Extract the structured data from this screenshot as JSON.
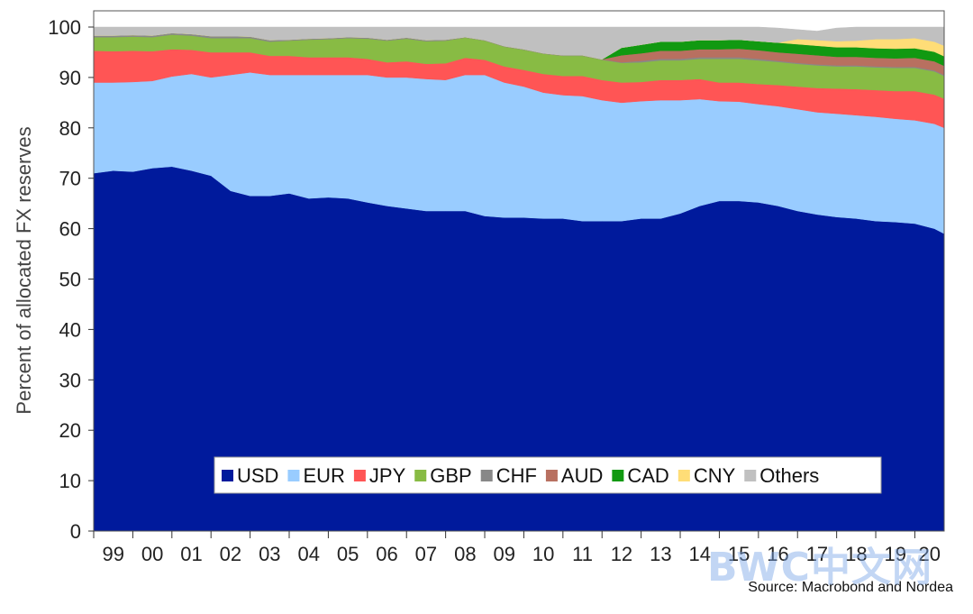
{
  "chart_data": {
    "type": "area",
    "stacked": true,
    "title": "",
    "xlabel": "",
    "ylabel": "Percent of allocated FX reserves",
    "ylim": [
      0,
      100
    ],
    "yticks": [
      0,
      10,
      20,
      30,
      40,
      50,
      60,
      70,
      80,
      90,
      100
    ],
    "x_range": [
      1999.0,
      2020.75
    ],
    "xtick_labels": [
      "99",
      "00",
      "01",
      "02",
      "03",
      "04",
      "05",
      "06",
      "07",
      "08",
      "09",
      "10",
      "11",
      "12",
      "13",
      "14",
      "15",
      "16",
      "17",
      "18",
      "19",
      "20"
    ],
    "x": [
      1999.0,
      1999.5,
      2000.0,
      2000.5,
      2001.0,
      2001.5,
      2002.0,
      2002.5,
      2003.0,
      2003.5,
      2004.0,
      2004.5,
      2005.0,
      2005.5,
      2006.0,
      2006.5,
      2007.0,
      2007.5,
      2008.0,
      2008.5,
      2009.0,
      2009.5,
      2010.0,
      2010.5,
      2011.0,
      2011.5,
      2012.0,
      2012.5,
      2013.0,
      2013.5,
      2014.0,
      2014.5,
      2015.0,
      2015.5,
      2016.0,
      2016.5,
      2017.0,
      2017.5,
      2018.0,
      2018.5,
      2019.0,
      2019.5,
      2020.0,
      2020.5,
      2020.75
    ],
    "legend_position": "bottom-center",
    "series": [
      {
        "name": "USD",
        "color": "#001a9c",
        "values": [
          71.0,
          71.5,
          71.3,
          72.0,
          72.3,
          71.5,
          70.5,
          67.5,
          66.5,
          66.5,
          67.0,
          66.0,
          66.2,
          66.0,
          65.2,
          64.5,
          64.0,
          63.5,
          63.5,
          63.5,
          62.5,
          62.2,
          62.2,
          62.0,
          62.0,
          61.5,
          61.5,
          61.5,
          62.0,
          62.0,
          63.0,
          64.5,
          65.5,
          65.5,
          65.2,
          64.5,
          63.5,
          62.8,
          62.3,
          62.0,
          61.5,
          61.3,
          61.0,
          60.0,
          59.0
        ]
      },
      {
        "name": "EUR",
        "color": "#99ccff",
        "values": [
          18.0,
          17.5,
          17.8,
          17.3,
          17.9,
          19.2,
          19.5,
          23.0,
          24.5,
          24.0,
          23.5,
          24.5,
          24.3,
          24.5,
          25.3,
          25.5,
          26.0,
          26.2,
          26.0,
          27.0,
          28.0,
          26.8,
          26.0,
          25.0,
          24.5,
          24.8,
          24.0,
          23.5,
          23.3,
          23.5,
          22.5,
          21.2,
          19.8,
          19.7,
          19.5,
          19.8,
          20.2,
          20.3,
          20.5,
          20.5,
          20.7,
          20.5,
          20.5,
          20.8,
          21.0
        ]
      },
      {
        "name": "JPY",
        "color": "#ff5555",
        "values": [
          6.3,
          6.2,
          6.2,
          5.9,
          5.4,
          4.8,
          5.0,
          4.5,
          4.0,
          3.8,
          3.8,
          3.5,
          3.5,
          3.5,
          3.2,
          3.0,
          3.2,
          3.0,
          3.3,
          3.4,
          3.0,
          3.2,
          3.3,
          3.7,
          3.8,
          4.0,
          4.0,
          4.0,
          3.8,
          4.0,
          4.0,
          4.0,
          3.7,
          3.8,
          4.0,
          4.2,
          4.5,
          4.8,
          5.0,
          5.2,
          5.3,
          5.5,
          5.8,
          5.8,
          5.8
        ]
      },
      {
        "name": "GBP",
        "color": "#88bb44",
        "values": [
          2.7,
          2.8,
          2.8,
          2.8,
          2.9,
          2.8,
          2.8,
          2.8,
          2.8,
          2.8,
          3.0,
          3.5,
          3.6,
          3.8,
          4.0,
          4.3,
          4.5,
          4.5,
          4.5,
          4.0,
          3.8,
          3.9,
          4.0,
          4.0,
          4.0,
          4.0,
          4.0,
          3.9,
          3.9,
          3.9,
          3.9,
          4.0,
          4.7,
          4.7,
          4.7,
          4.6,
          4.5,
          4.5,
          4.4,
          4.5,
          4.5,
          4.6,
          4.6,
          4.6,
          4.5
        ]
      },
      {
        "name": "CHF",
        "color": "#888888",
        "values": [
          0.3,
          0.3,
          0.3,
          0.3,
          0.3,
          0.3,
          0.4,
          0.4,
          0.3,
          0.3,
          0.2,
          0.2,
          0.2,
          0.2,
          0.2,
          0.2,
          0.2,
          0.2,
          0.2,
          0.1,
          0.1,
          0.1,
          0.1,
          0.1,
          0.1,
          0.1,
          0.1,
          0.1,
          0.3,
          0.3,
          0.3,
          0.3,
          0.3,
          0.3,
          0.3,
          0.2,
          0.2,
          0.2,
          0.2,
          0.2,
          0.2,
          0.2,
          0.2,
          0.2,
          0.2
        ]
      },
      {
        "name": "AUD",
        "color": "#b87060",
        "values": [
          0.0,
          0.0,
          0.0,
          0.0,
          0.0,
          0.0,
          0.0,
          0.0,
          0.0,
          0.0,
          0.0,
          0.0,
          0.0,
          0.0,
          0.0,
          0.0,
          0.0,
          0.0,
          0.0,
          0.0,
          0.0,
          0.0,
          0.0,
          0.0,
          0.0,
          0.0,
          0.0,
          1.4,
          1.5,
          1.6,
          1.6,
          1.6,
          1.6,
          1.7,
          1.7,
          1.7,
          1.8,
          1.8,
          1.7,
          1.7,
          1.7,
          1.7,
          1.8,
          1.8,
          1.8
        ]
      },
      {
        "name": "CAD",
        "color": "#119911",
        "values": [
          0.0,
          0.0,
          0.0,
          0.0,
          0.0,
          0.0,
          0.0,
          0.0,
          0.0,
          0.0,
          0.0,
          0.0,
          0.0,
          0.0,
          0.0,
          0.0,
          0.0,
          0.0,
          0.0,
          0.0,
          0.0,
          0.0,
          0.0,
          0.0,
          0.0,
          0.0,
          0.0,
          1.5,
          1.7,
          1.8,
          1.8,
          1.8,
          1.8,
          1.8,
          1.8,
          1.9,
          1.9,
          1.9,
          1.9,
          1.9,
          1.9,
          1.9,
          1.9,
          1.9,
          1.9
        ]
      },
      {
        "name": "CNY",
        "color": "#ffdd77",
        "values": [
          0.0,
          0.0,
          0.0,
          0.0,
          0.0,
          0.0,
          0.0,
          0.0,
          0.0,
          0.0,
          0.0,
          0.0,
          0.0,
          0.0,
          0.0,
          0.0,
          0.0,
          0.0,
          0.0,
          0.0,
          0.0,
          0.0,
          0.0,
          0.0,
          0.0,
          0.0,
          0.0,
          0.0,
          0.0,
          0.0,
          0.0,
          0.0,
          0.0,
          0.0,
          0.0,
          0.0,
          1.0,
          1.1,
          1.2,
          1.3,
          1.8,
          1.9,
          2.0,
          2.0,
          2.1
        ]
      },
      {
        "name": "Others",
        "color": "#c0c0c0",
        "values": [
          1.7,
          1.7,
          1.6,
          1.7,
          1.2,
          1.4,
          1.8,
          1.8,
          1.9,
          2.6,
          2.5,
          2.3,
          2.2,
          2.0,
          2.1,
          2.5,
          2.1,
          2.6,
          2.5,
          2.0,
          2.6,
          3.8,
          4.4,
          5.2,
          5.6,
          5.6,
          6.4,
          4.1,
          3.5,
          2.9,
          2.9,
          2.6,
          2.6,
          2.5,
          2.8,
          2.9,
          1.9,
          1.8,
          2.6,
          2.7,
          2.4,
          2.4,
          2.2,
          2.9,
          3.7
        ]
      }
    ]
  },
  "source_text": "Source: Macrobond and Nordea",
  "watermark_text": "BWC中文网"
}
